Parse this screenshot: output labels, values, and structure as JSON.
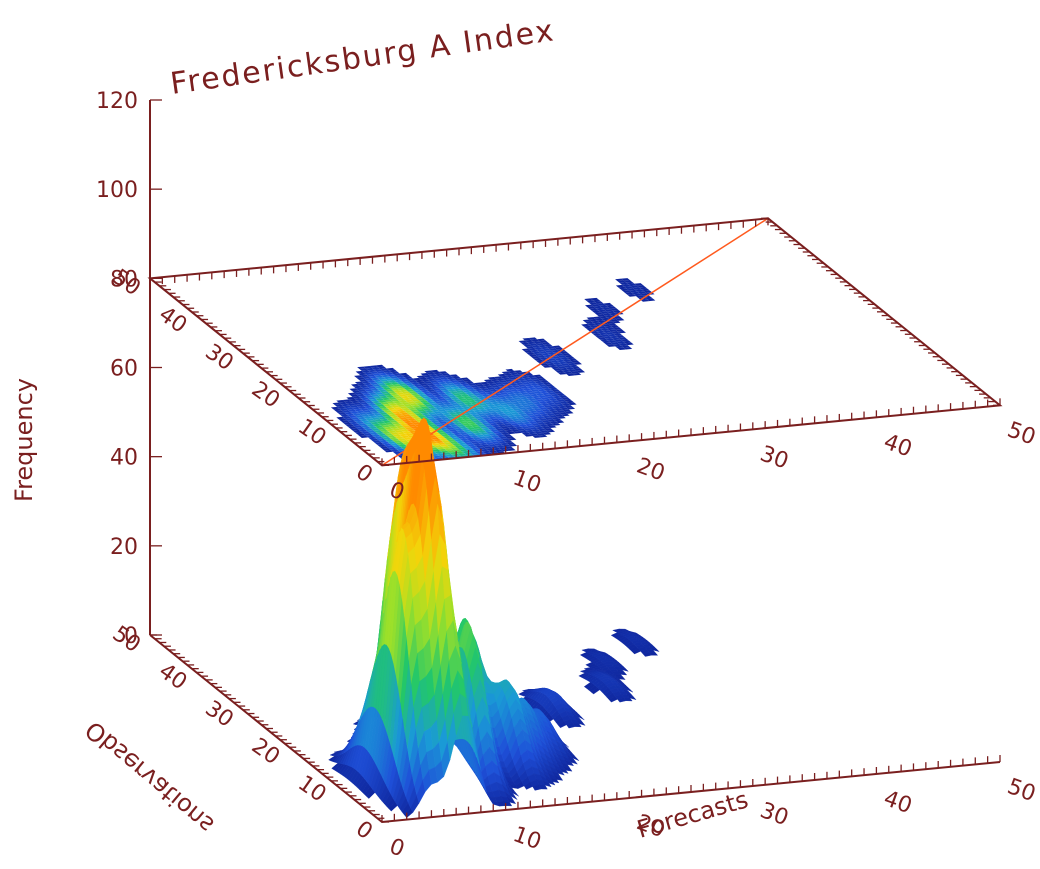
{
  "chart_data": {
    "type": "surface-3d",
    "title": "Fredericksburg A Index",
    "xlabel": "Forecasts",
    "ylabel": "Observations",
    "zlabel": "Frequency",
    "xlim": [
      0,
      50
    ],
    "ylim": [
      0,
      50
    ],
    "zlim": [
      0,
      120
    ],
    "x_ticks": [
      "0",
      "10",
      "20",
      "30",
      "40",
      "50"
    ],
    "y_ticks": [
      "0",
      "10",
      "20",
      "30",
      "40",
      "50"
    ],
    "z_ticks": [
      "0",
      "20",
      "40",
      "60",
      "80",
      "100",
      "120"
    ],
    "peaks": [
      {
        "forecast": 6,
        "observation": 6,
        "frequency": 67
      },
      {
        "forecast": 6,
        "observation": 12,
        "frequency": 58
      },
      {
        "forecast": 8,
        "observation": 16,
        "frequency": 57
      },
      {
        "forecast": 4,
        "observation": 6,
        "frequency": 52
      },
      {
        "forecast": 10,
        "observation": 8,
        "frequency": 35
      },
      {
        "forecast": 12,
        "observation": 14,
        "frequency": 30
      },
      {
        "forecast": 7,
        "observation": 2,
        "frequency": 22
      },
      {
        "forecast": 14,
        "observation": 10,
        "frequency": 18
      },
      {
        "forecast": 16,
        "observation": 12,
        "frequency": 12
      },
      {
        "forecast": 3,
        "observation": 10,
        "frequency": 14
      },
      {
        "forecast": 18,
        "observation": 14,
        "frequency": 8
      },
      {
        "forecast": 22,
        "observation": 22,
        "frequency": 5
      },
      {
        "forecast": 28,
        "observation": 26,
        "frequency": 3
      },
      {
        "forecast": 30,
        "observation": 32,
        "frequency": 2
      },
      {
        "forecast": 34,
        "observation": 36,
        "frequency": 2
      },
      {
        "forecast": 38,
        "observation": 40,
        "frequency": 1
      }
    ],
    "colormap": [
      "#0a1a8c",
      "#1e4fd8",
      "#1a9ad6",
      "#22c76a",
      "#9be02a",
      "#f2d60a",
      "#ff8a00"
    ],
    "diagonal_color": "#ff5a1e",
    "axis_color": "#7a1f1f"
  }
}
